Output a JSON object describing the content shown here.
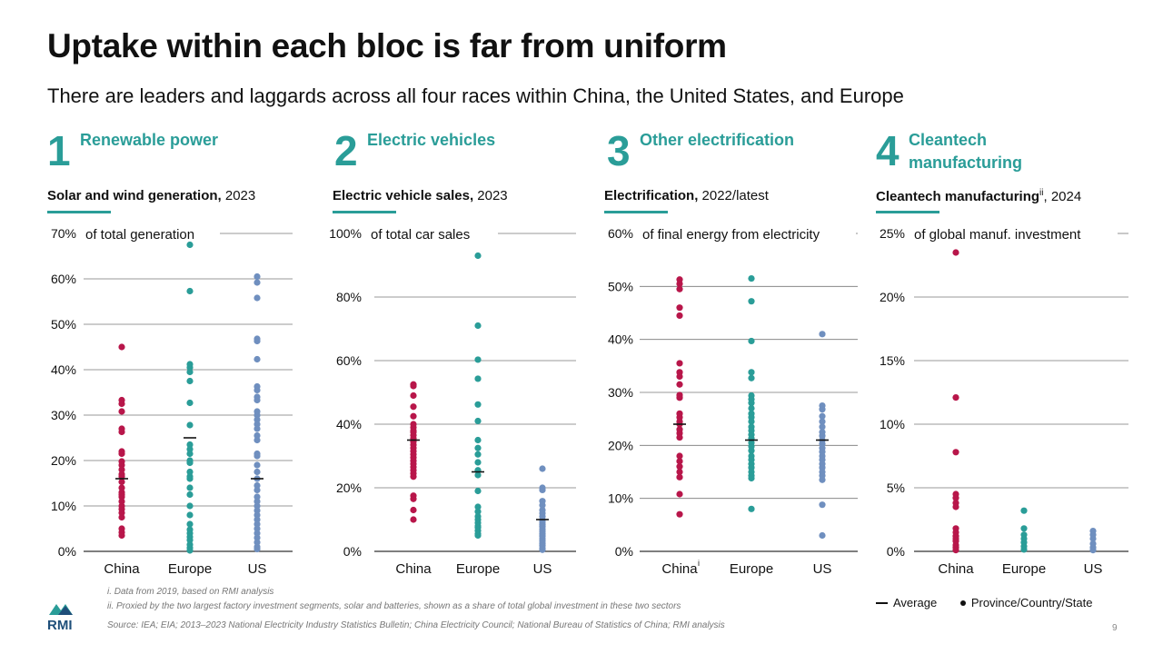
{
  "title": "Uptake within each bloc is far from uniform",
  "subtitle": "There are leaders and laggards across all four races within China, the United States, and Europe",
  "colors": {
    "china": "#b8164a",
    "europe": "#2a9d98",
    "us": "#6f8fbf",
    "accent": "#2a9d98",
    "grid": "#555555"
  },
  "panels": [
    {
      "num": "1",
      "name": "Renewable power",
      "metric_bold": "Solar and wind generation,",
      "metric_rest": " 2023",
      "metric_sup": ""
    },
    {
      "num": "2",
      "name": "Electric vehicles",
      "metric_bold": "Electric vehicle sales,",
      "metric_rest": " 2023",
      "metric_sup": ""
    },
    {
      "num": "3",
      "name": "Other electrification",
      "metric_bold": "Electrification,",
      "metric_rest": " 2022/latest",
      "metric_sup": ""
    },
    {
      "num": "4",
      "name": "Cleantech manufacturing",
      "metric_bold": "Cleantech manufacturing",
      "metric_rest": ", 2024",
      "metric_sup": "ii"
    }
  ],
  "chart_data": [
    {
      "type": "scatter",
      "title": "Solar and wind generation, 2023",
      "ylabel": "of total generation",
      "ylim": [
        0,
        70
      ],
      "yticks": [
        "0%",
        "10%",
        "20%",
        "30%",
        "40%",
        "50%",
        "60%",
        "70%"
      ],
      "categories": [
        "China",
        "Europe",
        "US"
      ],
      "category_sup": [
        "",
        "",
        ""
      ],
      "series": [
        {
          "name": "China",
          "average": 16,
          "values": [
            45,
            33.3,
            32.5,
            30.8,
            27,
            26.3,
            22,
            21.5,
            19.8,
            19,
            18,
            17,
            16.5,
            15.3,
            14,
            13,
            12.5,
            12,
            11,
            10,
            9.3,
            8.5,
            7.5,
            5,
            4.2,
            3.5
          ]
        },
        {
          "name": "Europe",
          "average": 25,
          "values": [
            67.5,
            57.3,
            41.2,
            40.5,
            39.5,
            37.5,
            32.7,
            27.8,
            23.5,
            22.5,
            21.5,
            20,
            19.5,
            17.5,
            16.5,
            16,
            14,
            12.5,
            10,
            8,
            6,
            4.8,
            4,
            3.2,
            2.5,
            1.5,
            0.8,
            0.2
          ]
        },
        {
          "name": "US",
          "average": 16,
          "values": [
            60.5,
            59.2,
            55.8,
            46.8,
            46.3,
            42.3,
            36.3,
            35.5,
            34,
            33.3,
            30.8,
            30,
            29,
            28,
            27,
            25.5,
            24.5,
            21.5,
            21,
            19,
            17.5,
            16,
            14.5,
            13.5,
            12,
            11,
            10,
            9,
            8,
            7,
            6,
            5,
            4,
            3,
            2,
            1,
            0.5
          ]
        }
      ]
    },
    {
      "type": "scatter",
      "title": "Electric vehicle sales, 2023",
      "ylabel": "of total car sales",
      "ylim": [
        0,
        100
      ],
      "yticks": [
        "0%",
        "20%",
        "40%",
        "60%",
        "80%",
        "100%"
      ],
      "categories": [
        "China",
        "Europe",
        "US"
      ],
      "category_sup": [
        "",
        "",
        ""
      ],
      "series": [
        {
          "name": "China",
          "average": 35,
          "values": [
            52.5,
            52,
            49,
            45.5,
            42.5,
            40,
            39,
            38,
            37.5,
            36.5,
            35.5,
            34.5,
            33.5,
            32.5,
            31.5,
            30.5,
            29.5,
            28.5,
            27.5,
            26.5,
            25.5,
            24.5,
            23.5,
            17.5,
            16.5,
            13,
            10
          ]
        },
        {
          "name": "Europe",
          "average": 25,
          "values": [
            93,
            71,
            60.3,
            54.3,
            46.2,
            41,
            35,
            32.5,
            30.5,
            28,
            25.5,
            24,
            19,
            14,
            12.5,
            11,
            10,
            9,
            8,
            7.5,
            6.5,
            5.5,
            5
          ]
        },
        {
          "name": "US",
          "average": 10,
          "values": [
            26,
            20,
            19.3,
            15.8,
            14.5,
            13,
            12,
            11,
            10,
            9.3,
            8.5,
            7.8,
            7,
            6.3,
            5.5,
            4.8,
            4,
            3.3,
            2.5,
            1.8,
            1,
            0.5
          ]
        }
      ]
    },
    {
      "type": "scatter",
      "title": "Electrification, 2022/latest",
      "ylabel": "of final energy from electricity",
      "ylim": [
        0,
        60
      ],
      "yticks": [
        "0%",
        "10%",
        "20%",
        "30%",
        "40%",
        "50%",
        "60%"
      ],
      "categories": [
        "China",
        "Europe",
        "US"
      ],
      "category_sup": [
        "i",
        "",
        ""
      ],
      "series": [
        {
          "name": "China",
          "average": 24,
          "values": [
            51.3,
            50.5,
            49.5,
            46,
            44.5,
            35.5,
            33.8,
            33,
            31.5,
            29.5,
            29,
            26,
            25.3,
            24.5,
            24,
            23,
            22.3,
            21.5,
            18,
            17,
            16,
            15,
            14,
            10.8,
            7
          ]
        },
        {
          "name": "Europe",
          "average": 21,
          "values": [
            51.5,
            47.2,
            39.7,
            33.8,
            32.7,
            29.4,
            28.7,
            28,
            27,
            26,
            25.3,
            24.5,
            23.5,
            22.8,
            22,
            21.3,
            20.5,
            19.8,
            19,
            18,
            17.3,
            16.5,
            15.8,
            15,
            14.3,
            13.8,
            8
          ]
        },
        {
          "name": "US",
          "average": 21,
          "values": [
            41,
            27.5,
            26.8,
            25.5,
            24.5,
            23.5,
            22.5,
            21.8,
            21,
            20.3,
            19.5,
            18.8,
            18,
            17.3,
            16.5,
            15.8,
            15,
            14.3,
            13.5,
            8.8,
            3
          ]
        }
      ]
    },
    {
      "type": "scatter",
      "title": "Cleantech manufacturing, 2024",
      "ylabel": "of global manuf. investment",
      "ylim": [
        0,
        25
      ],
      "yticks": [
        "0%",
        "5%",
        "10%",
        "15%",
        "20%",
        "25%"
      ],
      "categories": [
        "China",
        "Europe",
        "US"
      ],
      "category_sup": [
        "",
        "",
        ""
      ],
      "series": [
        {
          "name": "China",
          "average": null,
          "values": [
            23.5,
            12.1,
            7.8,
            4.5,
            4.2,
            3.8,
            3.5,
            1.8,
            1.5,
            1.2,
            1,
            0.8,
            0.5,
            0.3,
            0.1
          ]
        },
        {
          "name": "Europe",
          "average": null,
          "values": [
            3.2,
            1.8,
            1.3,
            1,
            0.7,
            0.4,
            0.15
          ]
        },
        {
          "name": "US",
          "average": null,
          "values": [
            1.6,
            1.3,
            1,
            0.6,
            0.3,
            0.1
          ]
        }
      ]
    }
  ],
  "footnotes": {
    "i": "i. Data from 2019, based on RMI analysis",
    "ii": "ii. Proxied by the two largest factory investment segments, solar and batteries, shown as a share of total global investment in these two sectors",
    "source": "Source: IEA; EIA; 2013–2023 National Electricity Industry Statistics Bulletin; China Electricity Council; National Bureau of Statistics of China; RMI analysis"
  },
  "legend": {
    "average": "Average",
    "point": "Province/Country/State"
  },
  "logo_text": "RMI",
  "page_number": "9"
}
